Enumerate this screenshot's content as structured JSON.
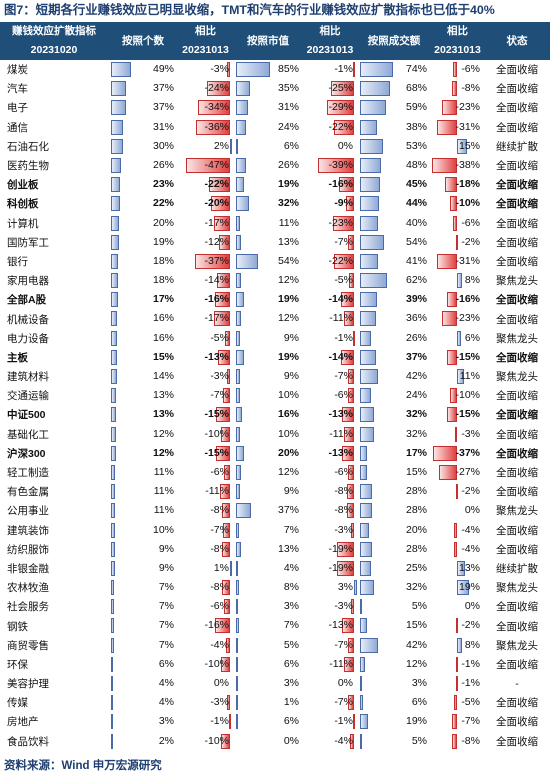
{
  "title": "图7：短期各行业赚钱效应已明显收缩，TMT和汽车的行业赚钱效应扩散指标也已低于40%",
  "source": "资料来源：Wind 申万宏源研究",
  "headers": {
    "col0_line1": "赚钱效应扩散指标",
    "col0_line2": "20231020",
    "col1": "按照个数",
    "col2_line1": "相比",
    "col2_line2": "20231013",
    "col3": "按照市值",
    "col4_line1": "相比",
    "col4_line2": "20231013",
    "col5": "按照成交额",
    "col6_line1": "相比",
    "col6_line2": "20231013",
    "col7": "状态"
  },
  "rows": [
    {
      "name": "煤炭",
      "bold": false,
      "count": 49,
      "count_chg": -3,
      "mcap": 85,
      "mcap_chg": -1,
      "amt": 74,
      "amt_chg": -6,
      "status": "全面收缩"
    },
    {
      "name": "汽车",
      "bold": false,
      "count": 37,
      "count_chg": -24,
      "mcap": 35,
      "mcap_chg": -25,
      "amt": 68,
      "amt_chg": -8,
      "status": "全面收缩"
    },
    {
      "name": "电子",
      "bold": false,
      "count": 37,
      "count_chg": -34,
      "mcap": 31,
      "mcap_chg": -29,
      "amt": 59,
      "amt_chg": -23,
      "status": "全面收缩"
    },
    {
      "name": "通信",
      "bold": false,
      "count": 31,
      "count_chg": -36,
      "mcap": 24,
      "mcap_chg": -22,
      "amt": 38,
      "amt_chg": -31,
      "status": "全面收缩"
    },
    {
      "name": "石油石化",
      "bold": false,
      "count": 30,
      "count_chg": 2,
      "mcap": 6,
      "mcap_chg": 0,
      "amt": 53,
      "amt_chg": 15,
      "status": "继续扩散"
    },
    {
      "name": "医药生物",
      "bold": false,
      "count": 26,
      "count_chg": -47,
      "mcap": 26,
      "mcap_chg": -39,
      "amt": 48,
      "amt_chg": -38,
      "status": "全面收缩"
    },
    {
      "name": "创业板",
      "bold": true,
      "count": 23,
      "count_chg": -22,
      "mcap": 19,
      "mcap_chg": -16,
      "amt": 45,
      "amt_chg": -18,
      "status": "全面收缩"
    },
    {
      "name": "科创板",
      "bold": true,
      "count": 22,
      "count_chg": -20,
      "mcap": 32,
      "mcap_chg": -9,
      "amt": 44,
      "amt_chg": -10,
      "status": "全面收缩"
    },
    {
      "name": "计算机",
      "bold": false,
      "count": 20,
      "count_chg": -17,
      "mcap": 11,
      "mcap_chg": -23,
      "amt": 40,
      "amt_chg": -6,
      "status": "全面收缩"
    },
    {
      "name": "国防军工",
      "bold": false,
      "count": 19,
      "count_chg": -12,
      "mcap": 13,
      "mcap_chg": -7,
      "amt": 54,
      "amt_chg": -2,
      "status": "全面收缩"
    },
    {
      "name": "银行",
      "bold": false,
      "count": 18,
      "count_chg": -37,
      "mcap": 54,
      "mcap_chg": -22,
      "amt": 41,
      "amt_chg": -31,
      "status": "全面收缩"
    },
    {
      "name": "家用电器",
      "bold": false,
      "count": 18,
      "count_chg": -14,
      "mcap": 12,
      "mcap_chg": -5,
      "amt": 62,
      "amt_chg": 8,
      "status": "聚焦龙头"
    },
    {
      "name": "全部A股",
      "bold": true,
      "count": 17,
      "count_chg": -16,
      "mcap": 19,
      "mcap_chg": -14,
      "amt": 39,
      "amt_chg": -16,
      "status": "全面收缩"
    },
    {
      "name": "机械设备",
      "bold": false,
      "count": 16,
      "count_chg": -17,
      "mcap": 12,
      "mcap_chg": -11,
      "amt": 36,
      "amt_chg": -23,
      "status": "全面收缩"
    },
    {
      "name": "电力设备",
      "bold": false,
      "count": 16,
      "count_chg": -5,
      "mcap": 9,
      "mcap_chg": -1,
      "amt": 26,
      "amt_chg": 6,
      "status": "聚焦龙头"
    },
    {
      "name": "主板",
      "bold": true,
      "count": 15,
      "count_chg": -13,
      "mcap": 19,
      "mcap_chg": -14,
      "amt": 37,
      "amt_chg": -15,
      "status": "全面收缩"
    },
    {
      "name": "建筑材料",
      "bold": false,
      "count": 14,
      "count_chg": -3,
      "mcap": 9,
      "mcap_chg": -7,
      "amt": 42,
      "amt_chg": 11,
      "status": "聚焦龙头"
    },
    {
      "name": "交通运输",
      "bold": false,
      "count": 13,
      "count_chg": -7,
      "mcap": 10,
      "mcap_chg": -6,
      "amt": 24,
      "amt_chg": -10,
      "status": "全面收缩"
    },
    {
      "name": "中证500",
      "bold": true,
      "count": 13,
      "count_chg": -15,
      "mcap": 16,
      "mcap_chg": -13,
      "amt": 32,
      "amt_chg": -15,
      "status": "全面收缩"
    },
    {
      "name": "基础化工",
      "bold": false,
      "count": 12,
      "count_chg": -10,
      "mcap": 10,
      "mcap_chg": -11,
      "amt": 32,
      "amt_chg": -3,
      "status": "全面收缩"
    },
    {
      "name": "沪深300",
      "bold": true,
      "count": 12,
      "count_chg": -15,
      "mcap": 20,
      "mcap_chg": -13,
      "amt": 17,
      "amt_chg": -37,
      "status": "全面收缩"
    },
    {
      "name": "轻工制造",
      "bold": false,
      "count": 11,
      "count_chg": -6,
      "mcap": 12,
      "mcap_chg": -6,
      "amt": 15,
      "amt_chg": -27,
      "status": "全面收缩"
    },
    {
      "name": "有色金属",
      "bold": false,
      "count": 11,
      "count_chg": -11,
      "mcap": 9,
      "mcap_chg": -8,
      "amt": 28,
      "amt_chg": -2,
      "status": "全面收缩"
    },
    {
      "name": "公用事业",
      "bold": false,
      "count": 11,
      "count_chg": -8,
      "mcap": 37,
      "mcap_chg": -8,
      "amt": 28,
      "amt_chg": 0,
      "status": "聚焦龙头"
    },
    {
      "name": "建筑装饰",
      "bold": false,
      "count": 10,
      "count_chg": -7,
      "mcap": 7,
      "mcap_chg": -3,
      "amt": 20,
      "amt_chg": -4,
      "status": "全面收缩"
    },
    {
      "name": "纺织服饰",
      "bold": false,
      "count": 9,
      "count_chg": -8,
      "mcap": 13,
      "mcap_chg": -19,
      "amt": 28,
      "amt_chg": -4,
      "status": "全面收缩"
    },
    {
      "name": "非银金融",
      "bold": false,
      "count": 9,
      "count_chg": 1,
      "mcap": 4,
      "mcap_chg": -19,
      "amt": 25,
      "amt_chg": 13,
      "status": "继续扩散"
    },
    {
      "name": "农林牧渔",
      "bold": false,
      "count": 7,
      "count_chg": -8,
      "mcap": 8,
      "mcap_chg": 3,
      "amt": 32,
      "amt_chg": 19,
      "status": "聚焦龙头"
    },
    {
      "name": "社会服务",
      "bold": false,
      "count": 7,
      "count_chg": -6,
      "mcap": 3,
      "mcap_chg": -3,
      "amt": 5,
      "amt_chg": 0,
      "status": "全面收缩"
    },
    {
      "name": "钢铁",
      "bold": false,
      "count": 7,
      "count_chg": -16,
      "mcap": 7,
      "mcap_chg": -13,
      "amt": 15,
      "amt_chg": -2,
      "status": "全面收缩"
    },
    {
      "name": "商贸零售",
      "bold": false,
      "count": 7,
      "count_chg": -4,
      "mcap": 5,
      "mcap_chg": -7,
      "amt": 42,
      "amt_chg": 8,
      "status": "聚焦龙头"
    },
    {
      "name": "环保",
      "bold": false,
      "count": 6,
      "count_chg": -10,
      "mcap": 6,
      "mcap_chg": -11,
      "amt": 12,
      "amt_chg": -1,
      "status": "全面收缩"
    },
    {
      "name": "美容护理",
      "bold": false,
      "count": 4,
      "count_chg": 0,
      "mcap": 3,
      "mcap_chg": 0,
      "amt": 3,
      "amt_chg": -1,
      "status": "-"
    },
    {
      "name": "传媒",
      "bold": false,
      "count": 4,
      "count_chg": -3,
      "mcap": 1,
      "mcap_chg": -7,
      "amt": 6,
      "amt_chg": -5,
      "status": "全面收缩"
    },
    {
      "name": "房地产",
      "bold": false,
      "count": 3,
      "count_chg": -1,
      "mcap": 6,
      "mcap_chg": -1,
      "amt": 19,
      "amt_chg": -7,
      "status": "全面收缩"
    },
    {
      "name": "食品饮料",
      "bold": false,
      "count": 2,
      "count_chg": -10,
      "mcap": 0,
      "mcap_chg": -4,
      "amt": 5,
      "amt_chg": -8,
      "status": "全面收缩"
    }
  ]
}
